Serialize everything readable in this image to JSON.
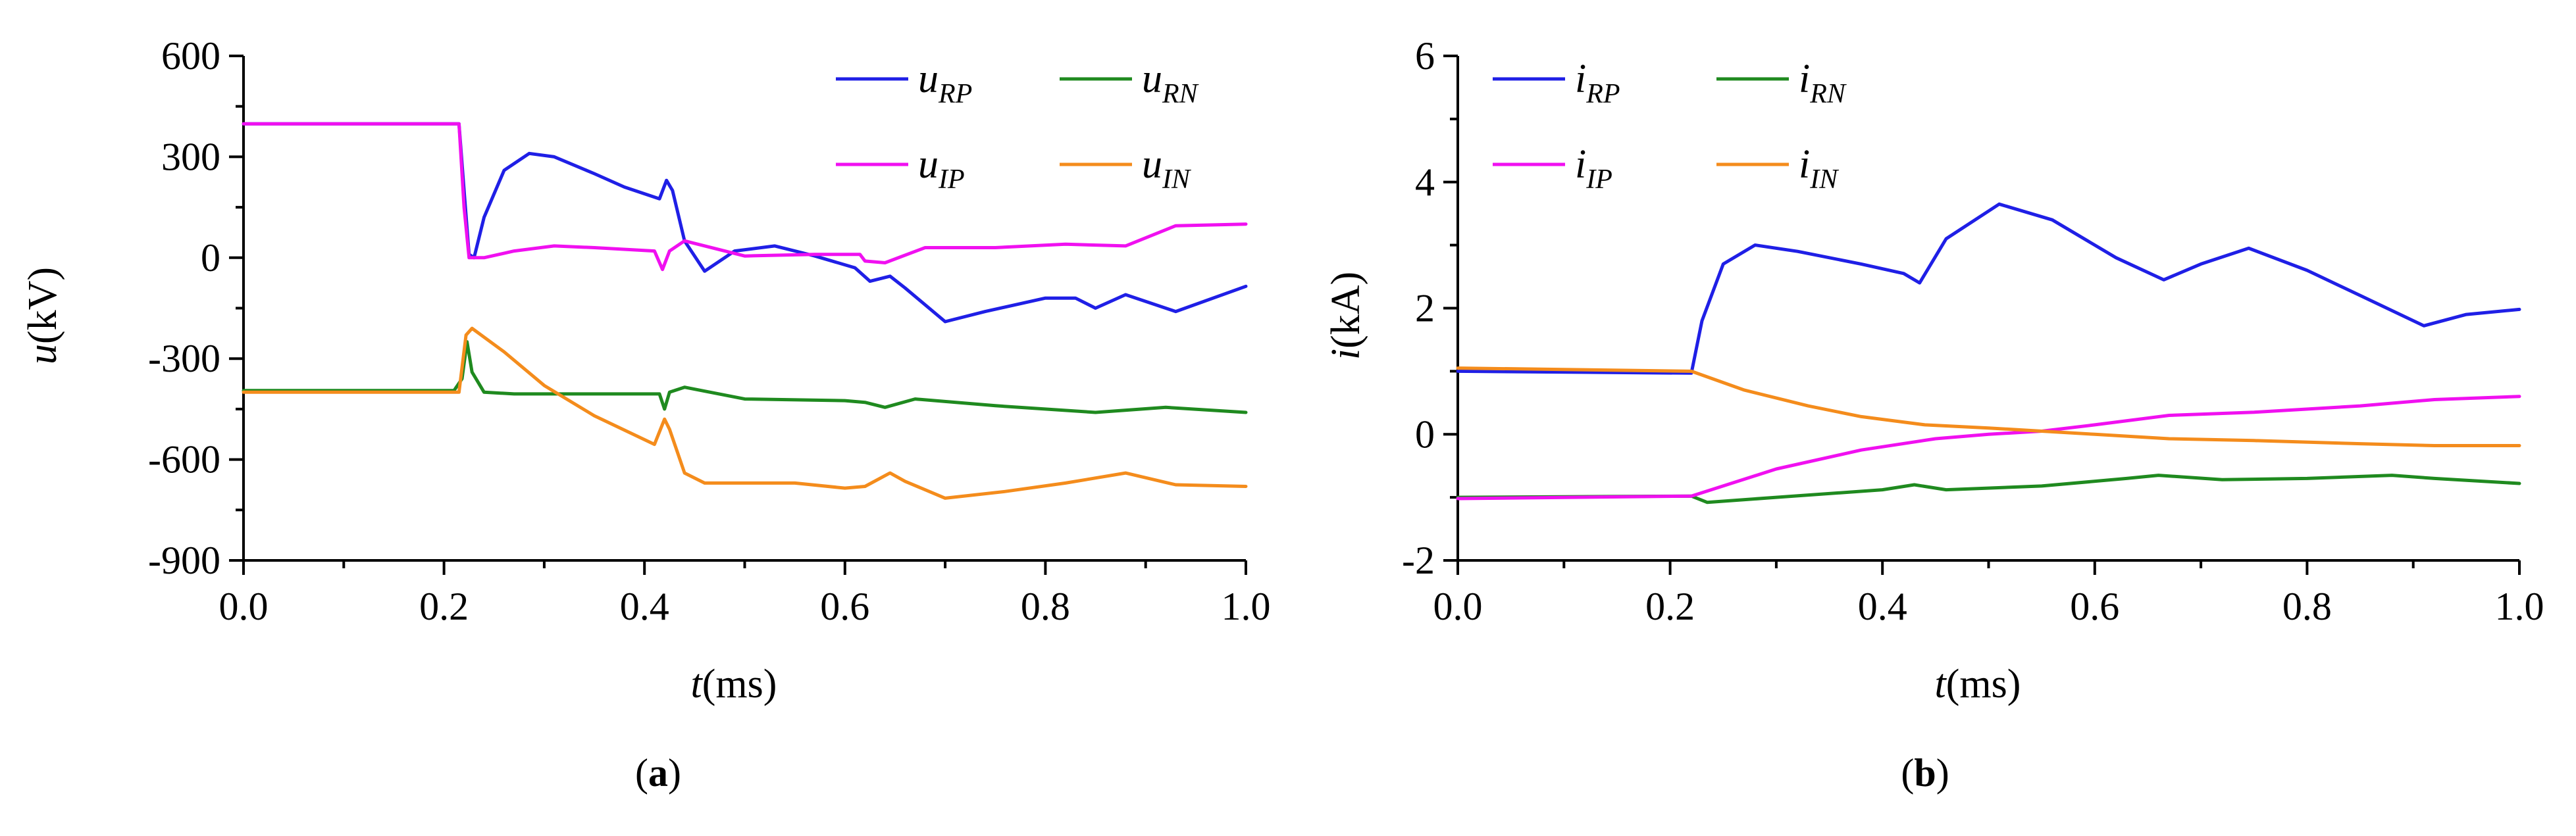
{
  "chart_data": [
    {
      "type": "line",
      "panel": "a",
      "caption_letter": "a",
      "xlabel_var": "t",
      "xlabel_unit": "(ms)",
      "ylabel_var": "u",
      "ylabel_unit": "(kV)",
      "xlim": [
        0.0,
        1.0
      ],
      "ylim": [
        -900,
        600
      ],
      "xticks": [
        0.0,
        0.2,
        0.4,
        0.6,
        0.8,
        1.0
      ],
      "xtick_labels": [
        "0.0",
        "0.2",
        "0.4",
        "0.6",
        "0.8",
        "1.0"
      ],
      "yticks": [
        -900,
        -600,
        -300,
        0,
        300,
        600
      ],
      "ytick_labels": [
        "-900",
        "-600",
        "-300",
        "0",
        "300",
        "600"
      ],
      "legend": "top-right, two columns",
      "series": [
        {
          "name": "u_RP",
          "base": "u",
          "sub": "RP",
          "color": "#1f1fe6",
          "x": [
            0,
            0.215,
            0.22,
            0.225,
            0.23,
            0.24,
            0.26,
            0.285,
            0.31,
            0.35,
            0.38,
            0.415,
            0.422,
            0.428,
            0.44,
            0.46,
            0.49,
            0.53,
            0.57,
            0.61,
            0.625,
            0.645,
            0.66,
            0.7,
            0.74,
            0.8,
            0.83,
            0.85,
            0.88,
            0.93,
            1.0
          ],
          "y": [
            398,
            398,
            200,
            10,
            0,
            120,
            260,
            310,
            300,
            250,
            210,
            175,
            230,
            200,
            50,
            -40,
            20,
            35,
            5,
            -30,
            -70,
            -55,
            -90,
            -190,
            -160,
            -120,
            -120,
            -150,
            -110,
            -160,
            -85
          ]
        },
        {
          "name": "u_RN",
          "base": "u",
          "sub": "RN",
          "color": "#1f8a1f",
          "x": [
            0,
            0.21,
            0.218,
            0.223,
            0.228,
            0.24,
            0.27,
            0.35,
            0.415,
            0.42,
            0.425,
            0.44,
            0.5,
            0.6,
            0.62,
            0.64,
            0.67,
            0.75,
            0.85,
            0.92,
            1.0
          ],
          "y": [
            -395,
            -395,
            -360,
            -250,
            -340,
            -400,
            -405,
            -405,
            -405,
            -450,
            -400,
            -385,
            -420,
            -425,
            -430,
            -445,
            -420,
            -440,
            -460,
            -445,
            -460
          ]
        },
        {
          "name": "u_IP",
          "base": "u",
          "sub": "IP",
          "color": "#f010f0",
          "x": [
            0,
            0.215,
            0.22,
            0.225,
            0.24,
            0.27,
            0.31,
            0.35,
            0.41,
            0.418,
            0.425,
            0.44,
            0.5,
            0.57,
            0.615,
            0.62,
            0.64,
            0.68,
            0.75,
            0.82,
            0.88,
            0.93,
            1.0
          ],
          "y": [
            398,
            398,
            150,
            0,
            0,
            20,
            35,
            30,
            20,
            -35,
            20,
            50,
            5,
            10,
            10,
            -10,
            -15,
            30,
            30,
            40,
            35,
            95,
            100
          ]
        },
        {
          "name": "u_IN",
          "base": "u",
          "sub": "IN",
          "color": "#f48c1c",
          "x": [
            0,
            0.215,
            0.222,
            0.228,
            0.26,
            0.3,
            0.35,
            0.41,
            0.42,
            0.425,
            0.44,
            0.46,
            0.5,
            0.55,
            0.6,
            0.62,
            0.645,
            0.66,
            0.7,
            0.76,
            0.82,
            0.88,
            0.93,
            1.0
          ],
          "y": [
            -400,
            -400,
            -230,
            -210,
            -280,
            -380,
            -470,
            -555,
            -480,
            -510,
            -640,
            -670,
            -670,
            -670,
            -685,
            -680,
            -640,
            -665,
            -715,
            -695,
            -670,
            -640,
            -675,
            -680
          ]
        }
      ]
    },
    {
      "type": "line",
      "panel": "b",
      "caption_letter": "b",
      "xlabel_var": "t",
      "xlabel_unit": "(ms)",
      "ylabel_var": "i",
      "ylabel_unit": "(kA)",
      "xlim": [
        0.0,
        1.0
      ],
      "ylim": [
        -2,
        6
      ],
      "xticks": [
        0.0,
        0.2,
        0.4,
        0.6,
        0.8,
        1.0
      ],
      "xtick_labels": [
        "0.0",
        "0.2",
        "0.4",
        "0.6",
        "0.8",
        "1.0"
      ],
      "yticks": [
        -2,
        0,
        2,
        4,
        6
      ],
      "ytick_labels": [
        "-2",
        "0",
        "2",
        "4",
        "6"
      ],
      "legend": "top-left, two columns",
      "series": [
        {
          "name": "i_RP",
          "base": "i",
          "sub": "RP",
          "color": "#1f1fe6",
          "x": [
            0,
            0.22,
            0.23,
            0.25,
            0.28,
            0.32,
            0.38,
            0.42,
            0.435,
            0.46,
            0.51,
            0.56,
            0.62,
            0.665,
            0.7,
            0.745,
            0.8,
            0.85,
            0.91,
            0.95,
            1.0
          ],
          "y": [
            1.0,
            0.97,
            1.8,
            2.7,
            3.0,
            2.9,
            2.7,
            2.55,
            2.4,
            3.1,
            3.65,
            3.4,
            2.8,
            2.45,
            2.7,
            2.95,
            2.6,
            2.2,
            1.72,
            1.9,
            1.98
          ]
        },
        {
          "name": "i_RN",
          "base": "i",
          "sub": "RN",
          "color": "#1f8a1f",
          "x": [
            0,
            0.22,
            0.235,
            0.3,
            0.4,
            0.43,
            0.46,
            0.55,
            0.63,
            0.66,
            0.72,
            0.8,
            0.88,
            0.92,
            1.0
          ],
          "y": [
            -1.0,
            -0.98,
            -1.08,
            -1.0,
            -0.88,
            -0.8,
            -0.88,
            -0.82,
            -0.7,
            -0.65,
            -0.72,
            -0.7,
            -0.65,
            -0.7,
            -0.78
          ]
        },
        {
          "name": "i_IP",
          "base": "i",
          "sub": "IP",
          "color": "#f010f0",
          "x": [
            0,
            0.22,
            0.3,
            0.38,
            0.45,
            0.5,
            0.55,
            0.6,
            0.67,
            0.75,
            0.85,
            0.92,
            1.0
          ],
          "y": [
            -1.02,
            -0.98,
            -0.55,
            -0.25,
            -0.07,
            0.0,
            0.05,
            0.15,
            0.3,
            0.35,
            0.45,
            0.55,
            0.6
          ]
        },
        {
          "name": "i_IN",
          "base": "i",
          "sub": "IN",
          "color": "#f48c1c",
          "x": [
            0,
            0.22,
            0.27,
            0.33,
            0.38,
            0.44,
            0.5,
            0.55,
            0.6,
            0.67,
            0.75,
            0.85,
            0.92,
            1.0
          ],
          "y": [
            1.05,
            1.0,
            0.7,
            0.45,
            0.28,
            0.15,
            0.1,
            0.05,
            0.0,
            -0.07,
            -0.1,
            -0.15,
            -0.18,
            -0.18
          ]
        }
      ]
    }
  ]
}
